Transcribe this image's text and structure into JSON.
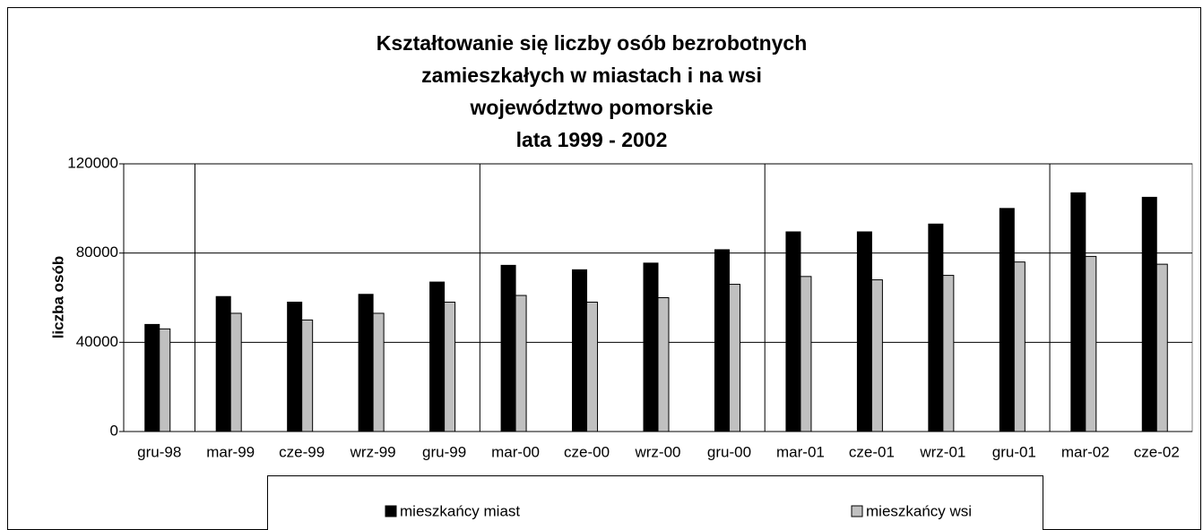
{
  "chart_data": {
    "type": "bar",
    "title": [
      "Kształtowanie się liczby osób bezrobotnych",
      "zamieszkałych w miastach i na wsi",
      "województwo pomorskie",
      "lata 1999 - 2002"
    ],
    "y_label": "liczba osób",
    "categories": [
      "gru-98",
      "mar-99",
      "cze-99",
      "wrz-99",
      "gru-99",
      "mar-00",
      "cze-00",
      "wrz-00",
      "gru-00",
      "mar-01",
      "cze-01",
      "wrz-01",
      "gru-01",
      "mar-02",
      "cze-02"
    ],
    "series": [
      {
        "name": "mieszkańcy miast",
        "color": "#000000",
        "values": [
          48000,
          60500,
          58000,
          61500,
          67000,
          74500,
          72500,
          75500,
          81500,
          89500,
          89500,
          93000,
          100000,
          107000,
          105000
        ]
      },
      {
        "name": "mieszkańcy wsi",
        "color": "#c0c0c0",
        "values": [
          46000,
          53000,
          50000,
          53000,
          58000,
          61000,
          58000,
          60000,
          66000,
          69500,
          68000,
          70000,
          76000,
          78500,
          75000
        ]
      }
    ],
    "ylim": [
      0,
      120000
    ],
    "yticks": [
      0,
      40000,
      80000,
      120000
    ],
    "grid": true,
    "legend": "bottom"
  }
}
